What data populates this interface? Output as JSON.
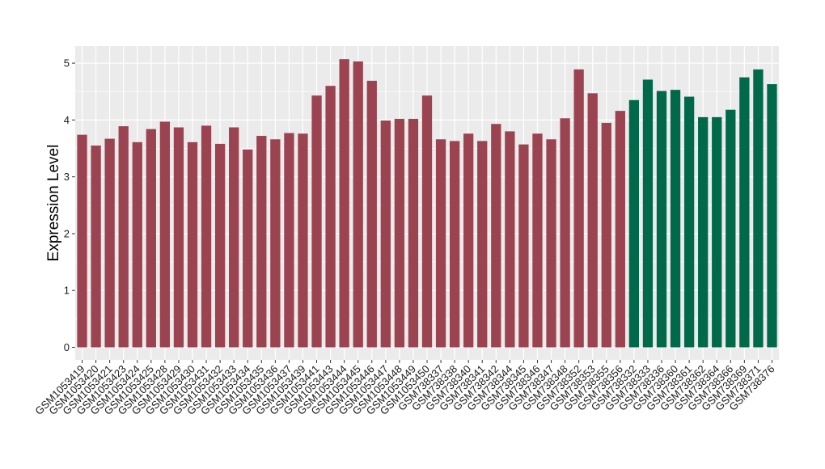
{
  "chart_data": {
    "type": "bar",
    "ylabel": "Expression Level",
    "xlabel": "",
    "ylim": [
      -0.22,
      5.3
    ],
    "yticks": [
      0,
      1,
      2,
      3,
      4,
      5
    ],
    "grid": true,
    "background": "#EBEBEB",
    "colors": {
      "group1": "#9B4350",
      "group2": "#00694A"
    },
    "categories": [
      "GSM1053419",
      "GSM1053420",
      "GSM1053421",
      "GSM1053423",
      "GSM1053424",
      "GSM1053425",
      "GSM1053428",
      "GSM1053429",
      "GSM1053430",
      "GSM1053431",
      "GSM1053432",
      "GSM1053433",
      "GSM1053434",
      "GSM1053435",
      "GSM1053436",
      "GSM1053437",
      "GSM1053439",
      "GSM1053441",
      "GSM1053443",
      "GSM1053444",
      "GSM1053445",
      "GSM1053446",
      "GSM1053447",
      "GSM1053448",
      "GSM1053449",
      "GSM1053450",
      "GSM738337",
      "GSM738338",
      "GSM738340",
      "GSM738341",
      "GSM738342",
      "GSM738344",
      "GSM738345",
      "GSM738346",
      "GSM738347",
      "GSM738348",
      "GSM738352",
      "GSM738353",
      "GSM738355",
      "GSM738356",
      "GSM738332",
      "GSM738333",
      "GSM738336",
      "GSM738360",
      "GSM738361",
      "GSM738362",
      "GSM738364",
      "GSM738366",
      "GSM738369",
      "GSM738371",
      "GSM738376"
    ],
    "values": [
      3.74,
      3.55,
      3.67,
      3.89,
      3.61,
      3.84,
      3.97,
      3.87,
      3.61,
      3.9,
      3.58,
      3.87,
      3.48,
      3.72,
      3.66,
      3.77,
      3.76,
      4.43,
      4.6,
      5.07,
      5.03,
      4.69,
      3.99,
      4.02,
      4.02,
      4.43,
      3.66,
      3.63,
      3.76,
      3.63,
      3.93,
      3.8,
      3.57,
      3.76,
      3.66,
      4.03,
      4.89,
      4.47,
      3.95,
      4.16,
      4.35,
      4.71,
      4.51,
      4.53,
      4.41,
      4.05,
      4.05,
      4.18,
      4.75,
      4.89,
      4.63
    ],
    "groups": [
      1,
      1,
      1,
      1,
      1,
      1,
      1,
      1,
      1,
      1,
      1,
      1,
      1,
      1,
      1,
      1,
      1,
      1,
      1,
      1,
      1,
      1,
      1,
      1,
      1,
      1,
      1,
      1,
      1,
      1,
      1,
      1,
      1,
      1,
      1,
      1,
      1,
      1,
      1,
      1,
      2,
      2,
      2,
      2,
      2,
      2,
      2,
      2,
      2,
      2,
      2
    ]
  }
}
